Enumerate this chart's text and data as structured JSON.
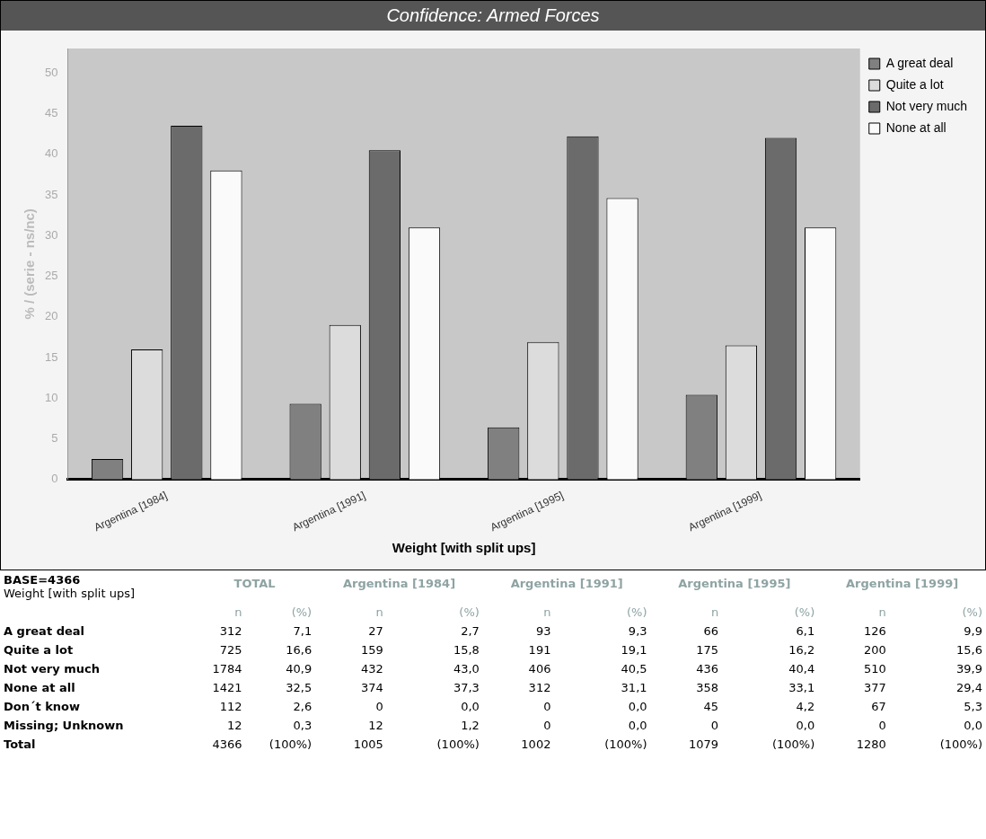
{
  "chart_data": [
    {
      "type": "bar",
      "title": "Confidence: Armed Forces",
      "xlabel": "Weight [with split ups]",
      "ylabel": "% / (serie - ns/nc)",
      "categories": [
        "Argentina [1984]",
        "Argentina [1991]",
        "Argentina [1995]",
        "Argentina [1999]"
      ],
      "series": [
        {
          "name": "A great deal",
          "color": "#808080",
          "values": [
            2.5,
            9.3,
            6.4,
            10.4
          ]
        },
        {
          "name": "Quite a lot",
          "color": "#dcdcdc",
          "values": [
            16,
            19,
            16.9,
            16.5
          ]
        },
        {
          "name": "Not very much",
          "color": "#6b6b6b",
          "values": [
            43.5,
            40.5,
            42.2,
            42
          ]
        },
        {
          "name": "None at all",
          "color": "#fafafa",
          "values": [
            38,
            31,
            34.6,
            31
          ]
        }
      ],
      "ylim": [
        0,
        53
      ],
      "yticks": [
        0,
        5,
        10,
        15,
        20,
        25,
        30,
        35,
        40,
        45,
        50
      ],
      "grid": false,
      "legend": "right"
    },
    {
      "type": "other",
      "title": "BASE=4366",
      "subtitle": "Weight [with split ups]",
      "categories": [
        "TOTAL",
        "Argentina [1984]",
        "Argentina [1991]",
        "Argentina [1995]",
        "Argentina [1999]"
      ],
      "y_categories": [
        null,
        "A great deal",
        "Quite a lot",
        "Not very much",
        "None at all",
        "Don´t know",
        "Missing; Unknown",
        "Total"
      ],
      "cell_labels": [
        [
          "n",
          "(%)",
          "n",
          "(%)",
          "n",
          "(%)",
          "n",
          "(%)",
          "n",
          "(%)"
        ],
        [
          "312",
          "7,1",
          "27",
          "2,7",
          "93",
          "9,3",
          "66",
          "6,1",
          "126",
          "9,9"
        ],
        [
          "725",
          "16,6",
          "159",
          "15,8",
          "191",
          "19,1",
          "175",
          "16,2",
          "200",
          "15,6"
        ],
        [
          "1784",
          "40,9",
          "432",
          "43,0",
          "406",
          "40,5",
          "436",
          "40,4",
          "510",
          "39,9"
        ],
        [
          "1421",
          "32,5",
          "374",
          "37,3",
          "312",
          "31,1",
          "358",
          "33,1",
          "377",
          "29,4"
        ],
        [
          "112",
          "2,6",
          "0",
          "0,0",
          "0",
          "0,0",
          "45",
          "4,2",
          "67",
          "5,3"
        ],
        [
          "12",
          "0,3",
          "12",
          "1,2",
          "0",
          "0,0",
          "0",
          "0,0",
          "0",
          "0,0"
        ],
        [
          "4366",
          "(100%)",
          "1005",
          "(100%)",
          "1002",
          "(100%)",
          "1079",
          "(100%)",
          "1280",
          "(100%)"
        ]
      ]
    }
  ]
}
